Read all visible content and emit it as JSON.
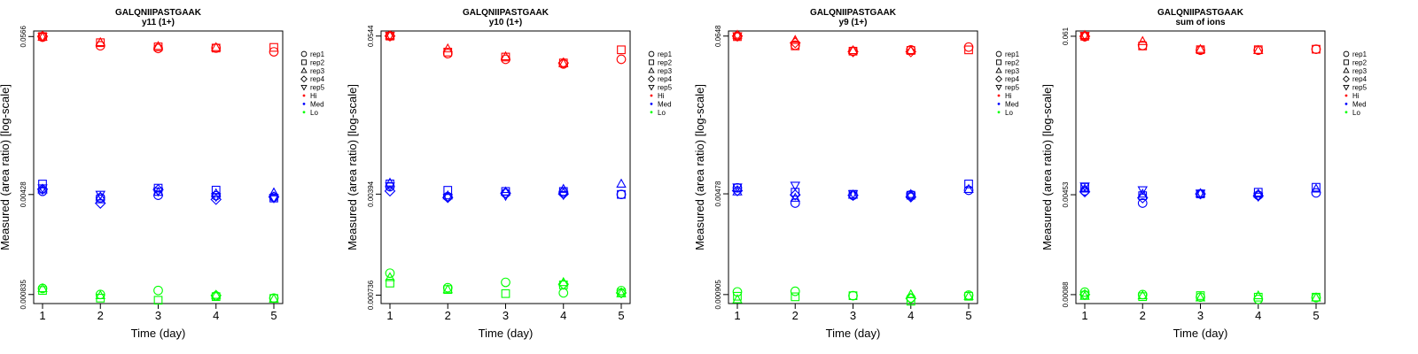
{
  "figure": {
    "panels_count": 4
  },
  "legend": [
    {
      "label": "rep1",
      "symbol": "circle",
      "color": "#000000"
    },
    {
      "label": "rep2",
      "symbol": "square",
      "color": "#000000"
    },
    {
      "label": "rep3",
      "symbol": "triangle",
      "color": "#000000"
    },
    {
      "label": "rep4",
      "symbol": "diamond",
      "color": "#000000"
    },
    {
      "label": "rep5",
      "symbol": "triangle-down",
      "color": "#000000"
    },
    {
      "label": "Hi",
      "symbol": "dot",
      "color": "#ff0000"
    },
    {
      "label": "Med",
      "symbol": "dot",
      "color": "#0000ff"
    },
    {
      "label": "Lo",
      "symbol": "dot",
      "color": "#00ff00"
    }
  ],
  "colors": {
    "Hi": "#ff0000",
    "Med": "#0000ff",
    "Lo": "#00ff00"
  },
  "chart_data": [
    {
      "type": "scatter",
      "title": "GALQNIIPASTGAAK",
      "subtitle": "y11 (1+)",
      "xlabel": "Time (day)",
      "ylabel": "Measured (area ratio) [log-scale]",
      "x": [
        1,
        2,
        3,
        4,
        5
      ],
      "yscale": "log",
      "ylim": [
        0.00072,
        0.062
      ],
      "yticks": [
        "0.0566",
        "0.00428",
        "0.000835"
      ],
      "ytick_values": [
        0.0566,
        0.00428,
        0.000835
      ],
      "series": [
        {
          "name": "Hi rep1",
          "level": "Hi",
          "rep": "rep1",
          "values": [
            0.0561,
            0.0487,
            0.0466,
            0.0469,
            0.0441
          ]
        },
        {
          "name": "Hi rep2",
          "level": "Hi",
          "rep": "rep2",
          "values": [
            0.0566,
            0.0512,
            0.0478,
            0.0469,
            0.0474
          ]
        },
        {
          "name": "Hi rep3",
          "level": "Hi",
          "rep": "rep3",
          "values": [
            0.0563,
            0.0514,
            0.0483,
            0.0474,
            null
          ]
        },
        {
          "name": "Hi rep4",
          "level": "Hi",
          "rep": "rep4",
          "values": [
            0.0568,
            null,
            null,
            null,
            null
          ]
        },
        {
          "name": "Hi rep5",
          "level": "Hi",
          "rep": "rep5",
          "values": [
            0.0565,
            null,
            null,
            null,
            null
          ]
        },
        {
          "name": "Med rep1",
          "level": "Med",
          "rep": "rep1",
          "values": [
            0.00451,
            0.00406,
            0.00423,
            0.0042,
            0.00411
          ]
        },
        {
          "name": "Med rep2",
          "level": "Med",
          "rep": "rep2",
          "values": [
            0.00508,
            0.00398,
            0.00475,
            0.0046,
            0.00404
          ]
        },
        {
          "name": "Med rep3",
          "level": "Med",
          "rep": "rep3",
          "values": [
            0.00463,
            0.00413,
            0.00445,
            0.00435,
            0.00441
          ]
        },
        {
          "name": "Med rep4",
          "level": "Med",
          "rep": "rep4",
          "values": [
            0.00467,
            0.00371,
            0.00463,
            0.00395,
            0.00411
          ]
        },
        {
          "name": "Med rep5",
          "level": "Med",
          "rep": "rep5",
          "values": [
            0.00475,
            0.00428,
            0.00451,
            0.00413,
            0.00404
          ]
        },
        {
          "name": "Lo rep1",
          "level": "Lo",
          "rep": "rep1",
          "values": [
            0.000922,
            0.000835,
            0.000892,
            0.000814,
            0.000787
          ]
        },
        {
          "name": "Lo rep2",
          "level": "Lo",
          "rep": "rep2",
          "values": [
            0.000892,
            0.000787,
            0.00076,
            0.000806,
            0.000783
          ]
        },
        {
          "name": "Lo rep3",
          "level": "Lo",
          "rep": "rep3",
          "values": [
            0.000922,
            0.000822,
            null,
            0.000827,
            0.000779
          ]
        },
        {
          "name": "Lo rep4",
          "level": "Lo",
          "rep": "rep4",
          "values": [
            null,
            null,
            null,
            0.000822,
            null
          ]
        }
      ]
    },
    {
      "type": "scatter",
      "title": "GALQNIIPASTGAAK",
      "subtitle": "y10 (1+)",
      "xlabel": "Time (day)",
      "ylabel": "Measured (area ratio) [log-scale]",
      "x": [
        1,
        2,
        3,
        4,
        5
      ],
      "yscale": "log",
      "ylim": [
        0.00064,
        0.0592
      ],
      "yticks": [
        "0.0544",
        "0.00394",
        "0.000736"
      ],
      "ytick_values": [
        0.0544,
        0.00394,
        0.000736
      ],
      "series": [
        {
          "name": "Hi rep1",
          "level": "Hi",
          "rep": "rep1",
          "values": [
            0.0544,
            0.0406,
            0.037,
            0.0342,
            0.037
          ]
        },
        {
          "name": "Hi rep2",
          "level": "Hi",
          "rep": "rep2",
          "values": [
            0.0544,
            0.0417,
            0.0384,
            0.0348,
            0.0433
          ]
        },
        {
          "name": "Hi rep3",
          "level": "Hi",
          "rep": "rep3",
          "values": [
            0.0548,
            0.0441,
            0.0387,
            0.0345,
            null
          ]
        },
        {
          "name": "Hi rep4",
          "level": "Hi",
          "rep": "rep4",
          "values": [
            0.0544,
            null,
            null,
            0.0348,
            null
          ]
        },
        {
          "name": "Hi rep5",
          "level": "Hi",
          "rep": "rep5",
          "values": [
            0.0548,
            null,
            null,
            null,
            null
          ]
        },
        {
          "name": "Med rep1",
          "level": "Med",
          "rep": "rep1",
          "values": [
            0.00446,
            0.00378,
            0.004,
            0.00405,
            0.00392
          ]
        },
        {
          "name": "Med rep2",
          "level": "Med",
          "rep": "rep2",
          "values": [
            0.00467,
            0.0042,
            0.00412,
            0.00412,
            0.00392
          ]
        },
        {
          "name": "Med rep3",
          "level": "Med",
          "rep": "rep3",
          "values": [
            0.00475,
            0.00384,
            0.0041,
            0.00428,
            0.00467
          ]
        },
        {
          "name": "Med rep4",
          "level": "Med",
          "rep": "rep4",
          "values": [
            0.00415,
            0.00372,
            0.004,
            0.00395,
            null
          ]
        },
        {
          "name": "Med rep5",
          "level": "Med",
          "rep": "rep5",
          "values": [
            0.00449,
            0.00372,
            0.00384,
            0.0039,
            null
          ]
        },
        {
          "name": "Lo rep1",
          "level": "Lo",
          "rep": "rep1",
          "values": [
            0.00106,
            0.000833,
            0.00091,
            0.000764,
            0.000793
          ]
        },
        {
          "name": "Lo rep2",
          "level": "Lo",
          "rep": "rep2",
          "values": [
            0.000899,
            0.000808,
            0.000755,
            0.000873,
            0.000764
          ]
        },
        {
          "name": "Lo rep3",
          "level": "Lo",
          "rep": "rep3",
          "values": [
            0.000988,
            0.000808,
            null,
            0.00091,
            0.000755
          ]
        },
        {
          "name": "Lo rep4",
          "level": "Lo",
          "rep": "rep4",
          "values": [
            null,
            null,
            null,
            0.000882,
            0.000764
          ]
        }
      ]
    },
    {
      "type": "scatter",
      "title": "GALQNIIPASTGAAK",
      "subtitle": "y9 (1+)",
      "xlabel": "Time (day)",
      "ylabel": "Measured (area ratio) [log-scale]",
      "x": [
        1,
        2,
        3,
        4,
        5
      ],
      "yscale": "log",
      "ylim": [
        0.00078,
        0.0705
      ],
      "yticks": [
        "0.0648",
        "0.00478",
        "0.000905"
      ],
      "ytick_values": [
        0.0648,
        0.00478,
        0.000905
      ],
      "series": [
        {
          "name": "Hi rep1",
          "level": "Hi",
          "rep": "rep1",
          "values": [
            0.0648,
            0.0557,
            0.0505,
            0.0516,
            0.054
          ]
        },
        {
          "name": "Hi rep2",
          "level": "Hi",
          "rep": "rep2",
          "values": [
            0.0642,
            0.0551,
            0.0505,
            0.0511,
            0.0516
          ]
        },
        {
          "name": "Hi rep3",
          "level": "Hi",
          "rep": "rep3",
          "values": [
            0.066,
            0.0605,
            0.0511,
            0.0511,
            null
          ]
        },
        {
          "name": "Hi rep4",
          "level": "Hi",
          "rep": "rep4",
          "values": [
            0.0648,
            0.058,
            0.05,
            0.05,
            null
          ]
        },
        {
          "name": "Hi rep5",
          "level": "Hi",
          "rep": "rep5",
          "values": [
            0.0648,
            null,
            null,
            null,
            null
          ]
        },
        {
          "name": "Med rep1",
          "level": "Med",
          "rep": "rep1",
          "values": [
            0.00528,
            0.0041,
            0.00466,
            0.0047,
            0.00507
          ]
        },
        {
          "name": "Med rep2",
          "level": "Med",
          "rep": "rep2",
          "values": [
            0.00527,
            0.00491,
            0.00474,
            0.00467,
            0.00563
          ]
        },
        {
          "name": "Med rep3",
          "level": "Med",
          "rep": "rep3",
          "values": [
            0.00495,
            0.00446,
            0.0047,
            0.00474,
            0.00516
          ]
        },
        {
          "name": "Med rep4",
          "level": "Med",
          "rep": "rep4",
          "values": [
            0.00503,
            0.0047,
            0.00466,
            0.00454,
            null
          ]
        },
        {
          "name": "Med rep5",
          "level": "Med",
          "rep": "rep5",
          "values": [
            0.00533,
            0.00549,
            0.00478,
            0.00459,
            null
          ]
        },
        {
          "name": "Lo rep1",
          "level": "Lo",
          "rep": "rep1",
          "values": [
            0.000946,
            0.000955,
            0.000888,
            0.000855,
            0.000896
          ]
        },
        {
          "name": "Lo rep2",
          "level": "Lo",
          "rep": "rep2",
          "values": [
            0.00088,
            0.000872,
            0.000888,
            0.000811,
            0.00088
          ]
        },
        {
          "name": "Lo rep3",
          "level": "Lo",
          "rep": "rep3",
          "values": [
            0.000834,
            null,
            null,
            0.000905,
            0.00088
          ]
        },
        {
          "name": "Lo rep4",
          "level": "Lo",
          "rep": "rep4",
          "values": [
            null,
            null,
            null,
            0.000848,
            null
          ]
        }
      ]
    },
    {
      "type": "scatter",
      "title": "GALQNIIPASTGAAK",
      "subtitle": "sum of ions",
      "xlabel": "Time (day)",
      "ylabel": "Measured (area ratio) [log-scale]",
      "x": [
        1,
        2,
        3,
        4,
        5
      ],
      "yscale": "log",
      "ylim": [
        0.00076,
        0.0665
      ],
      "yticks": [
        "0.061",
        "0.00453",
        "0.00088"
      ],
      "ytick_values": [
        0.061,
        0.00453,
        0.00088
      ],
      "series": [
        {
          "name": "Hi rep1",
          "level": "Hi",
          "rep": "rep1",
          "values": [
            0.0605,
            0.0524,
            0.0485,
            0.0485,
            0.0493
          ]
        },
        {
          "name": "Hi rep2",
          "level": "Hi",
          "rep": "rep2",
          "values": [
            0.061,
            0.052,
            0.0489,
            0.0489,
            0.0493
          ]
        },
        {
          "name": "Hi rep3",
          "level": "Hi",
          "rep": "rep3",
          "values": [
            0.062,
            0.0561,
            0.0493,
            0.0485,
            null
          ]
        },
        {
          "name": "Hi rep4",
          "level": "Hi",
          "rep": "rep4",
          "values": [
            0.061,
            null,
            null,
            null,
            null
          ]
        },
        {
          "name": "Hi rep5",
          "level": "Hi",
          "rep": "rep5",
          "values": [
            0.0615,
            null,
            null,
            null,
            null
          ]
        },
        {
          "name": "Med rep1",
          "level": "Med",
          "rep": "rep1",
          "values": [
            0.00483,
            0.00395,
            0.00459,
            0.00449,
            0.00467
          ]
        },
        {
          "name": "Med rep2",
          "level": "Med",
          "rep": "rep2",
          "values": [
            0.00512,
            0.00446,
            0.00459,
            0.00472,
            0.00512
          ]
        },
        {
          "name": "Med rep3",
          "level": "Med",
          "rep": "rep3",
          "values": [
            0.00499,
            0.00459,
            0.00463,
            0.00459,
            0.00499
          ]
        },
        {
          "name": "Med rep4",
          "level": "Med",
          "rep": "rep4",
          "values": [
            0.00475,
            0.0043,
            0.00459,
            0.00445,
            null
          ]
        },
        {
          "name": "Med rep5",
          "level": "Med",
          "rep": "rep5",
          "values": [
            0.00521,
            0.0049,
            0.00463,
            0.00441,
            null
          ]
        },
        {
          "name": "Lo rep1",
          "level": "Lo",
          "rep": "rep1",
          "values": [
            0.000917,
            0.00088,
            0.000844,
            0.000814,
            0.000837
          ]
        },
        {
          "name": "Lo rep2",
          "level": "Lo",
          "rep": "rep2",
          "values": [
            0.000873,
            0.000851,
            0.000866,
            0.000844,
            0.000844
          ]
        },
        {
          "name": "Lo rep3",
          "level": "Lo",
          "rep": "rep3",
          "values": [
            0.000858,
            0.000866,
            0.000837,
            0.000866,
            0.000837
          ]
        },
        {
          "name": "Lo rep4",
          "level": "Lo",
          "rep": "rep4",
          "values": [
            0.00088,
            null,
            null,
            null,
            null
          ]
        }
      ]
    }
  ]
}
